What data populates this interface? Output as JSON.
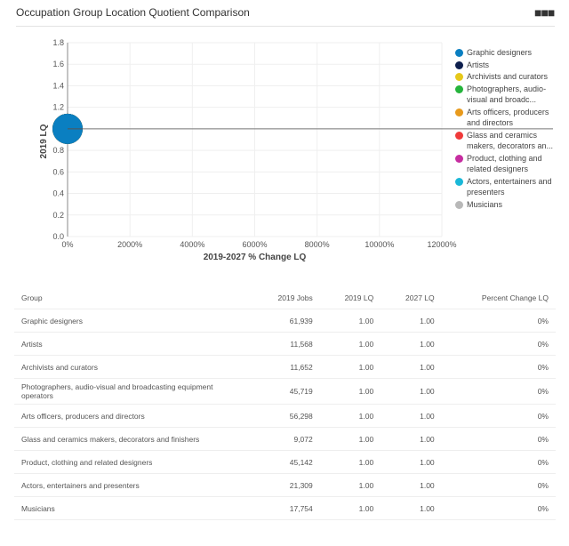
{
  "header": {
    "title": "Occupation Group Location Quotient Comparison",
    "menu_icon": "more-horizontal-icon"
  },
  "chart_data": {
    "type": "scatter",
    "xlabel": "2019-2027 % Change LQ",
    "ylabel": "2019 LQ",
    "xlim": [
      0,
      12000
    ],
    "ylim": [
      0,
      1.8
    ],
    "xticks": [
      "0%",
      "2000%",
      "4000%",
      "6000%",
      "8000%",
      "10000%",
      "12000%"
    ],
    "yticks": [
      "0.0",
      "0.2",
      "0.4",
      "0.6",
      "0.8",
      "1.0",
      "1.2",
      "1.4",
      "1.6",
      "1.8"
    ],
    "grid": true,
    "legend_position": "right",
    "reference_line_y": 1.0,
    "series": [
      {
        "name": "Graphic designers",
        "legend_label": "Graphic designers",
        "color": "#0a7fc1",
        "x": 0,
        "y": 1.0
      },
      {
        "name": "Artists",
        "legend_label": "Artists",
        "color": "#0e1f4d",
        "x": 0,
        "y": 1.0
      },
      {
        "name": "Archivists and curators",
        "legend_label": "Archivists and curators",
        "color": "#e6c81a",
        "x": 0,
        "y": 1.0
      },
      {
        "name": "Photographers, audio-visual and broadcasting equipment operators",
        "legend_label": "Photographers, audio-visual and broadc...",
        "color": "#25b43c",
        "x": 0,
        "y": 1.0
      },
      {
        "name": "Arts officers, producers and directors",
        "legend_label": "Arts officers, producers and directors",
        "color": "#e89a1c",
        "x": 0,
        "y": 1.0
      },
      {
        "name": "Glass and ceramics makers, decorators and finishers",
        "legend_label": "Glass and ceramics makers, decorators an...",
        "color": "#f03a3a",
        "x": 0,
        "y": 1.0
      },
      {
        "name": "Product, clothing and related designers",
        "legend_label": "Product, clothing and related designers",
        "color": "#c62da0",
        "x": 0,
        "y": 1.0
      },
      {
        "name": "Actors, entertainers and presenters",
        "legend_label": "Actors, entertainers and presenters",
        "color": "#1ab8d8",
        "x": 0,
        "y": 1.0
      },
      {
        "name": "Musicians",
        "legend_label": "Musicians",
        "color": "#b8b8b8",
        "x": 0,
        "y": 1.0
      }
    ]
  },
  "table": {
    "headers": [
      "Group",
      "2019 Jobs",
      "2019 LQ",
      "2027 LQ",
      "Percent Change LQ"
    ],
    "rows": [
      [
        "Graphic designers",
        "61,939",
        "1.00",
        "1.00",
        "0%"
      ],
      [
        "Artists",
        "11,568",
        "1.00",
        "1.00",
        "0%"
      ],
      [
        "Archivists and curators",
        "11,652",
        "1.00",
        "1.00",
        "0%"
      ],
      [
        "Photographers, audio-visual and broadcasting equipment operators",
        "45,719",
        "1.00",
        "1.00",
        "0%"
      ],
      [
        "Arts officers, producers and directors",
        "56,298",
        "1.00",
        "1.00",
        "0%"
      ],
      [
        "Glass and ceramics makers, decorators and finishers",
        "9,072",
        "1.00",
        "1.00",
        "0%"
      ],
      [
        "Product, clothing and related designers",
        "45,142",
        "1.00",
        "1.00",
        "0%"
      ],
      [
        "Actors, entertainers and presenters",
        "21,309",
        "1.00",
        "1.00",
        "0%"
      ],
      [
        "Musicians",
        "17,754",
        "1.00",
        "1.00",
        "0%"
      ]
    ]
  }
}
